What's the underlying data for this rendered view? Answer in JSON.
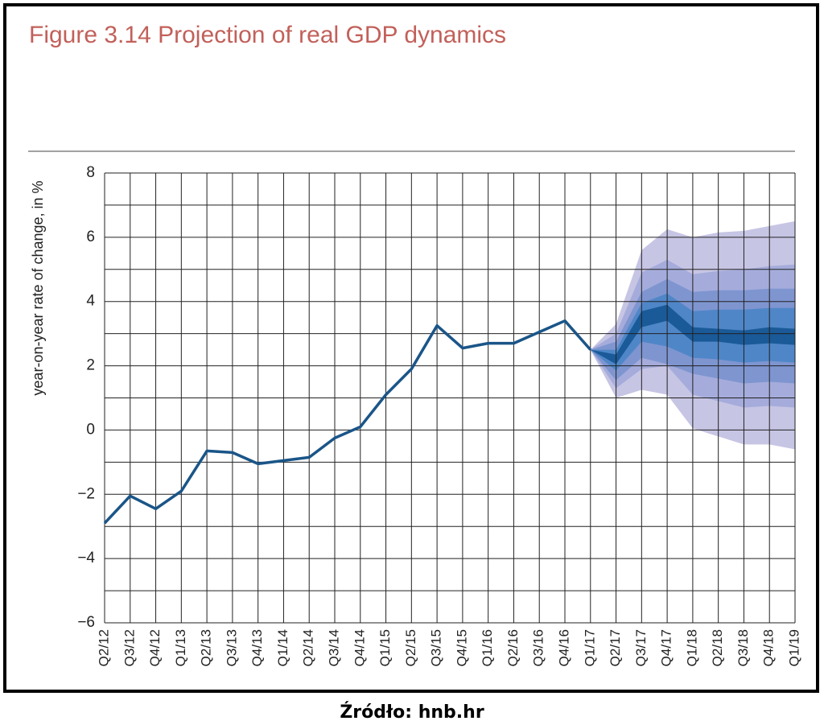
{
  "chart_data": {
    "type": "fan",
    "title": "Figure 3.14 Projection of real GDP dynamics",
    "y_label": "year-on-year rate of change, in %",
    "source": "Źródło: hnb.hr",
    "categories": [
      "Q2/12",
      "Q3/12",
      "Q4/12",
      "Q1/13",
      "Q2/13",
      "Q3/13",
      "Q4/13",
      "Q1/14",
      "Q2/14",
      "Q3/14",
      "Q4/14",
      "Q1/15",
      "Q2/15",
      "Q3/15",
      "Q4/15",
      "Q1/16",
      "Q2/16",
      "Q3/16",
      "Q4/16",
      "Q1/17",
      "Q2/17",
      "Q3/17",
      "Q4/17",
      "Q1/18",
      "Q2/18",
      "Q3/18",
      "Q4/18",
      "Q1/19"
    ],
    "series": [
      {
        "color": "#1a5588",
        "values": [
          -2.9,
          -2.05,
          -2.45,
          -1.9,
          -0.65,
          -0.7,
          -1.05,
          -0.95,
          -0.85,
          -0.25,
          0.1,
          1.1,
          1.9,
          3.25,
          2.55,
          2.7,
          2.7,
          3.05,
          3.4,
          2.5,
          null,
          null,
          null,
          null,
          null,
          null,
          null,
          null
        ]
      }
    ],
    "bands": [
      {
        "color": "#c7c5e4",
        "upper": [
          null,
          null,
          null,
          null,
          null,
          null,
          null,
          null,
          null,
          null,
          null,
          null,
          null,
          null,
          null,
          null,
          null,
          null,
          null,
          2.5,
          3.3,
          5.6,
          6.25,
          6.0,
          6.15,
          6.2,
          6.35,
          6.5
        ],
        "lower": [
          null,
          null,
          null,
          null,
          null,
          null,
          null,
          null,
          null,
          null,
          null,
          null,
          null,
          null,
          null,
          null,
          null,
          null,
          null,
          2.5,
          1.0,
          1.25,
          1.1,
          0.05,
          -0.2,
          -0.45,
          -0.45,
          -0.6
        ]
      },
      {
        "color": "#a5acdb",
        "upper": [
          null,
          null,
          null,
          null,
          null,
          null,
          null,
          null,
          null,
          null,
          null,
          null,
          null,
          null,
          null,
          null,
          null,
          null,
          null,
          2.5,
          3.0,
          4.9,
          5.3,
          4.85,
          4.95,
          5.0,
          5.1,
          5.15
        ],
        "lower": [
          null,
          null,
          null,
          null,
          null,
          null,
          null,
          null,
          null,
          null,
          null,
          null,
          null,
          null,
          null,
          null,
          null,
          null,
          null,
          2.5,
          1.3,
          1.9,
          2.0,
          1.1,
          0.9,
          0.7,
          0.75,
          0.7
        ]
      },
      {
        "color": "#7e95d0",
        "upper": [
          null,
          null,
          null,
          null,
          null,
          null,
          null,
          null,
          null,
          null,
          null,
          null,
          null,
          null,
          null,
          null,
          null,
          null,
          null,
          2.5,
          2.75,
          4.3,
          4.7,
          4.3,
          4.35,
          4.35,
          4.4,
          4.4
        ],
        "lower": [
          null,
          null,
          null,
          null,
          null,
          null,
          null,
          null,
          null,
          null,
          null,
          null,
          null,
          null,
          null,
          null,
          null,
          null,
          null,
          2.5,
          1.55,
          2.25,
          2.05,
          1.75,
          1.6,
          1.45,
          1.5,
          1.45
        ]
      },
      {
        "color": "#4f86c8",
        "upper": [
          null,
          null,
          null,
          null,
          null,
          null,
          null,
          null,
          null,
          null,
          null,
          null,
          null,
          null,
          null,
          null,
          null,
          null,
          null,
          2.5,
          2.5,
          3.95,
          4.25,
          3.7,
          3.75,
          3.75,
          3.8,
          3.8
        ],
        "lower": [
          null,
          null,
          null,
          null,
          null,
          null,
          null,
          null,
          null,
          null,
          null,
          null,
          null,
          null,
          null,
          null,
          null,
          null,
          null,
          2.5,
          1.85,
          2.75,
          2.6,
          2.25,
          2.2,
          2.1,
          2.15,
          2.1
        ]
      },
      {
        "color": "#1a5a98",
        "upper": [
          null,
          null,
          null,
          null,
          null,
          null,
          null,
          null,
          null,
          null,
          null,
          null,
          null,
          null,
          null,
          null,
          null,
          null,
          null,
          2.5,
          2.35,
          3.7,
          3.9,
          3.2,
          3.15,
          3.1,
          3.2,
          3.15
        ],
        "lower": [
          null,
          null,
          null,
          null,
          null,
          null,
          null,
          null,
          null,
          null,
          null,
          null,
          null,
          null,
          null,
          null,
          null,
          null,
          null,
          2.5,
          2.05,
          3.2,
          3.4,
          2.75,
          2.75,
          2.65,
          2.7,
          2.65
        ]
      }
    ],
    "ylim": [
      -6,
      8
    ],
    "yticks": [
      {
        "value": -6,
        "label": "−6"
      },
      {
        "value": -4,
        "label": "−4"
      },
      {
        "value": -2,
        "label": "−2"
      },
      0,
      2,
      4,
      6,
      8
    ],
    "minor_yticks": [
      -5,
      -3,
      -1,
      1,
      3,
      5,
      7
    ],
    "grid": true,
    "title_color": "#c2605a"
  }
}
